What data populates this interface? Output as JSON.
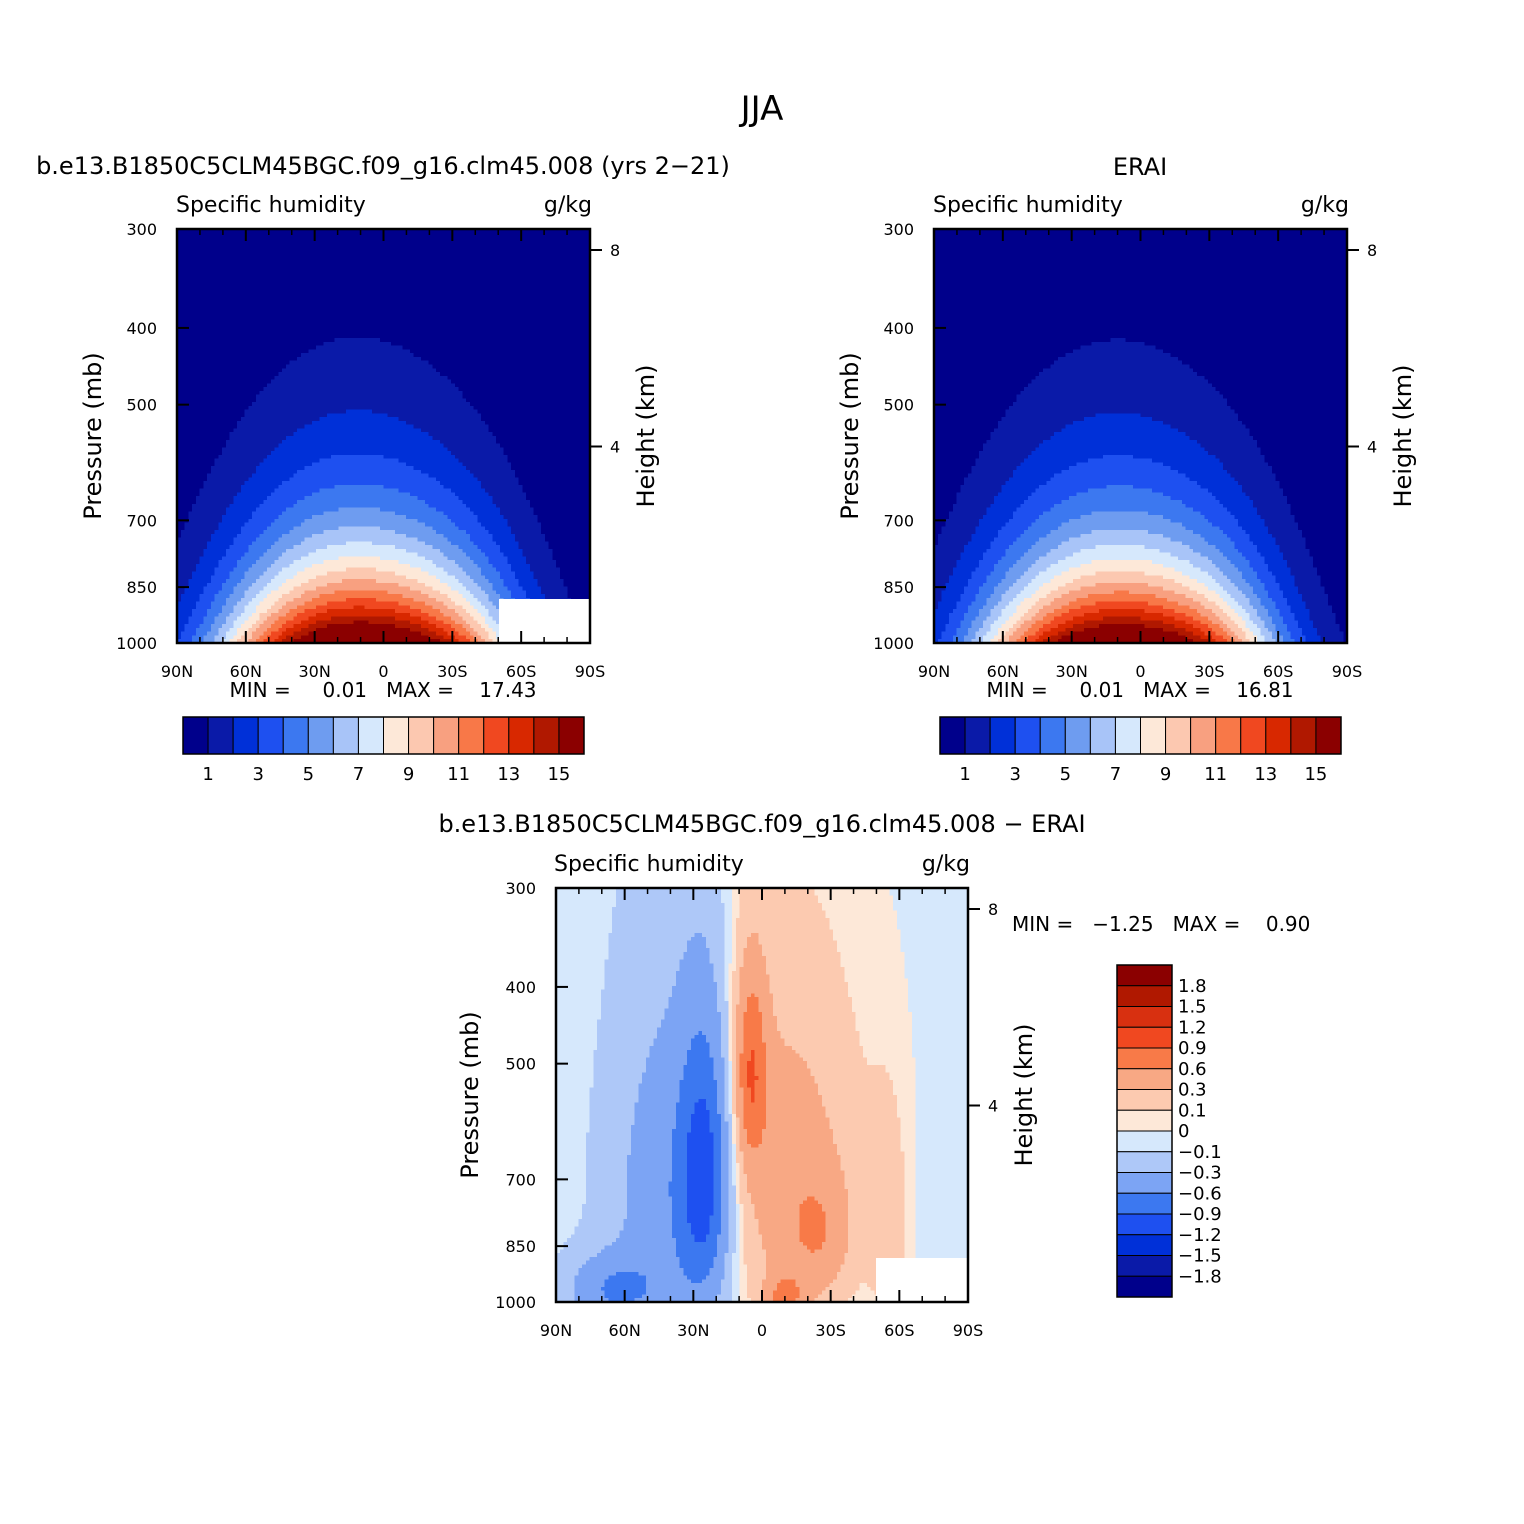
{
  "figure": {
    "title": "JJA",
    "colors": {
      "abs": [
        "#00008b",
        "#0a1aa8",
        "#0030d8",
        "#1e50f0",
        "#3c78f0",
        "#6e9cf0",
        "#a8c4f8",
        "#d6e8fc",
        "#fde8d8",
        "#fcc8b0",
        "#f8a080",
        "#f87848",
        "#f04820",
        "#d82800",
        "#b01800",
        "#8b0000"
      ],
      "diff": [
        "#00008b",
        "#0a1aa8",
        "#0030d8",
        "#1e50f0",
        "#3c78f0",
        "#7ca4f4",
        "#aec8f8",
        "#d6e8fc",
        "#fde8d8",
        "#fccab0",
        "#f8a884",
        "#f87a48",
        "#f04820",
        "#d83010",
        "#b01800",
        "#8b0000"
      ]
    }
  },
  "chart_data": [
    {
      "type": "heatmap",
      "name": "model",
      "title": "b.e13.B1850C5CLM45BGC.f09_g16.clm45.008 (yrs 2−21)",
      "left_label": "Specific humidity",
      "right_label": "g/kg",
      "ylabel": "Pressure (mb)",
      "y2label": "Height (km)",
      "y_ticks": [
        "300",
        "400",
        "500",
        "700",
        "850",
        "1000"
      ],
      "y2_ticks": [
        "8",
        "4"
      ],
      "x_ticks": [
        "90N",
        "60N",
        "30N",
        "0",
        "30S",
        "60S",
        "90S"
      ],
      "stats_text": "MIN =     0.01   MAX =    17.43",
      "min": 0.01,
      "max": 17.43,
      "colorbar_labels": [
        "1",
        "3",
        "5",
        "7",
        "9",
        "11",
        "13",
        "15"
      ],
      "missing_region": true
    },
    {
      "type": "heatmap",
      "name": "obs",
      "title": "ERAI",
      "left_label": "Specific humidity",
      "right_label": "g/kg",
      "ylabel": "Pressure (mb)",
      "y2label": "Height (km)",
      "y_ticks": [
        "300",
        "400",
        "500",
        "700",
        "850",
        "1000"
      ],
      "y2_ticks": [
        "8",
        "4"
      ],
      "x_ticks": [
        "90N",
        "60N",
        "30N",
        "0",
        "30S",
        "60S",
        "90S"
      ],
      "stats_text": "MIN =     0.01   MAX =    16.81",
      "min": 0.01,
      "max": 16.81,
      "colorbar_labels": [
        "1",
        "3",
        "5",
        "7",
        "9",
        "11",
        "13",
        "15"
      ]
    },
    {
      "type": "heatmap",
      "name": "difference",
      "title": "b.e13.B1850C5CLM45BGC.f09_g16.clm45.008 − ERAI",
      "left_label": "Specific humidity",
      "right_label": "g/kg",
      "ylabel": "Pressure (mb)",
      "y2label": "Height (km)",
      "y_ticks": [
        "300",
        "400",
        "500",
        "700",
        "850",
        "1000"
      ],
      "y2_ticks": [
        "8",
        "4"
      ],
      "x_ticks": [
        "90N",
        "60N",
        "30N",
        "0",
        "30S",
        "60S",
        "90S"
      ],
      "stats_text": "MIN =   −1.25   MAX =    0.90",
      "min": -1.25,
      "max": 0.9,
      "colorbar_labels": [
        "1.8",
        "1.5",
        "1.2",
        "0.9",
        "0.6",
        "0.3",
        "0.1",
        "0",
        "−0.1",
        "−0.3",
        "−0.6",
        "−0.9",
        "−1.2",
        "−1.5",
        "−1.8"
      ]
    }
  ]
}
